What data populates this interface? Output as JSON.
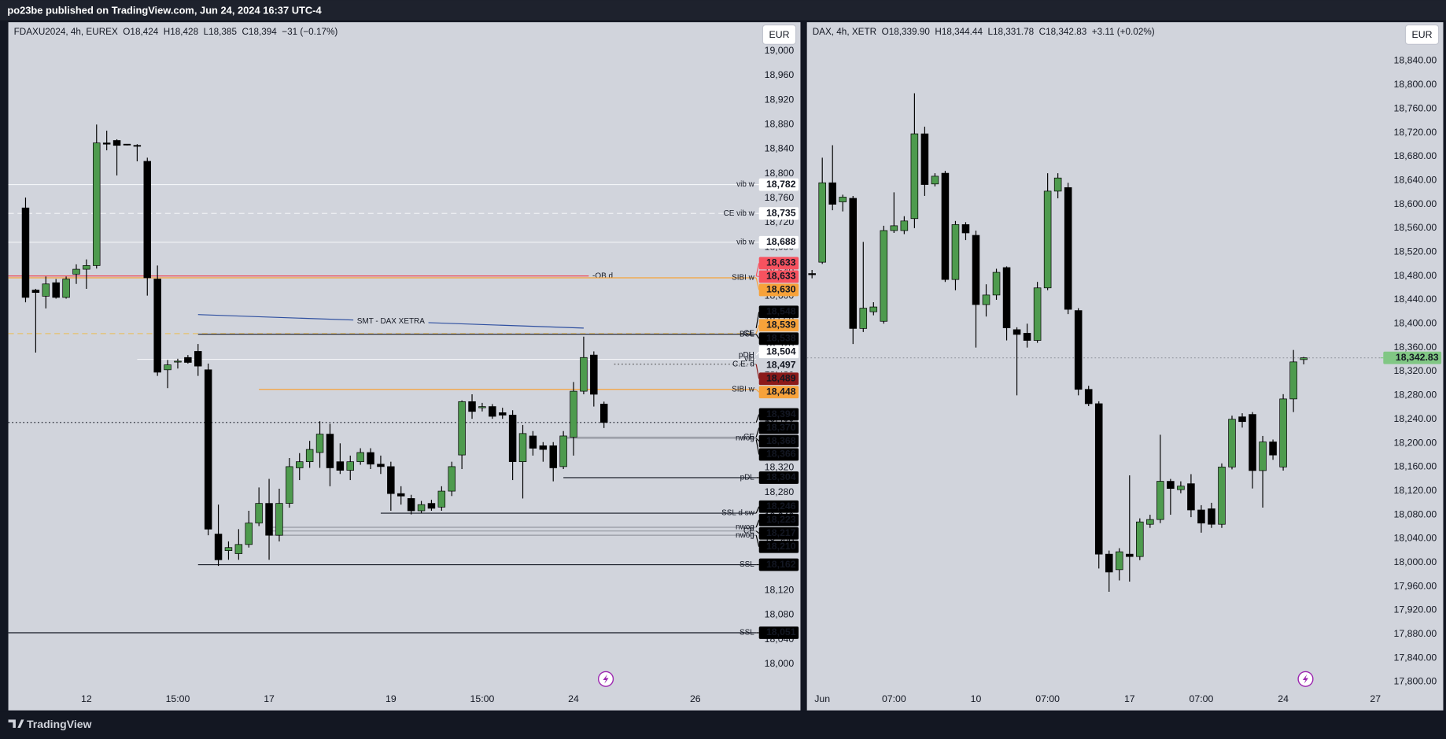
{
  "header": "po23be published on TradingView.com, Jun 24, 2024 16:37 UTC-4",
  "footer": "TradingView",
  "chart_data": [
    {
      "type": "candlestick",
      "title": "FDAXU2024, 4h, EUREX  O18,424  H18,428  L18,385  C18,394  −31 (−0.17%)",
      "currency": "EUR",
      "up_color": "#4e9b4e",
      "down_color": "#000000",
      "border_color": "#000000",
      "grid": false,
      "xlim": [
        -1.7,
        72
      ],
      "xticks": [
        {
          "value": 6,
          "label": "12"
        },
        {
          "value": 15,
          "label": "15:00"
        },
        {
          "value": 24,
          "label": "17"
        },
        {
          "value": 36,
          "label": "19"
        },
        {
          "value": 45,
          "label": "15:00"
        },
        {
          "value": 54,
          "label": "24"
        },
        {
          "value": 66,
          "label": "26"
        }
      ],
      "ylim": [
        17962,
        19047
      ],
      "yticks": [
        {
          "value": 18000,
          "label": "18,000"
        },
        {
          "value": 18040,
          "label": "18,040"
        },
        {
          "value": 18080,
          "label": "18,080"
        },
        {
          "value": 18120,
          "label": "18,120"
        },
        {
          "value": 18160,
          "label": "18,160"
        },
        {
          "value": 18200,
          "label": "18,200"
        },
        {
          "value": 18240,
          "label": "18,240"
        },
        {
          "value": 18280,
          "label": "18,280"
        },
        {
          "value": 18320,
          "label": "18,320"
        },
        {
          "value": 18360,
          "label": "18,360"
        },
        {
          "value": 18400,
          "label": "18,400"
        },
        {
          "value": 18440,
          "label": "18,440"
        },
        {
          "value": 18480,
          "label": "18,480"
        },
        {
          "value": 18520,
          "label": "18,520"
        },
        {
          "value": 18560,
          "label": "18,560"
        },
        {
          "value": 18600,
          "label": "18,600"
        },
        {
          "value": 18640,
          "label": "18,640"
        },
        {
          "value": 18680,
          "label": "18,680"
        },
        {
          "value": 18720,
          "label": "18,720"
        },
        {
          "value": 18760,
          "label": "18,760"
        },
        {
          "value": 18800,
          "label": "18,800"
        },
        {
          "value": 18840,
          "label": "18,840"
        },
        {
          "value": 18880,
          "label": "18,880"
        },
        {
          "value": 18920,
          "label": "18,920"
        },
        {
          "value": 18960,
          "label": "18,960"
        },
        {
          "value": 19000,
          "label": "19,000"
        }
      ],
      "candles": {
        "open": [
          18744,
          18610,
          18600,
          18622,
          18598,
          18636,
          18644,
          18650,
          18850,
          18854,
          18848,
          18846,
          18820,
          18628,
          18480,
          18494,
          18500,
          18510,
          18480,
          18212,
          18185,
          18180,
          18195,
          18230,
          18262,
          18210,
          18262,
          18320,
          18330,
          18345,
          18375,
          18330,
          18316,
          18330,
          18345,
          18326,
          18322,
          18278,
          18270,
          18250,
          18262,
          18256,
          18282,
          18341,
          18428,
          18418,
          18420,
          18410,
          18406,
          18330,
          18372,
          18356,
          18356,
          18322,
          18370,
          18445,
          18504,
          18424
        ],
        "high": [
          18761,
          18612,
          18632,
          18628,
          18632,
          18652,
          18660,
          18880,
          18870,
          18856,
          18848,
          18848,
          18826,
          18650,
          18496,
          18498,
          18504,
          18522,
          18490,
          18260,
          18200,
          18220,
          18250,
          18288,
          18302,
          18286,
          18336,
          18344,
          18364,
          18396,
          18392,
          18360,
          18340,
          18352,
          18352,
          18340,
          18330,
          18290,
          18276,
          18266,
          18268,
          18290,
          18330,
          18430,
          18440,
          18426,
          18424,
          18418,
          18414,
          18390,
          18380,
          18362,
          18362,
          18380,
          18460,
          18534,
          18510,
          18428
        ],
        "low": [
          18590,
          18508,
          18580,
          18596,
          18596,
          18620,
          18612,
          18645,
          18838,
          18797,
          18846,
          18820,
          18601,
          18470,
          18450,
          18482,
          18490,
          18470,
          18210,
          18160,
          18170,
          18170,
          18190,
          18225,
          18170,
          18200,
          18255,
          18300,
          18320,
          18320,
          18290,
          18310,
          18300,
          18325,
          18318,
          18310,
          18250,
          18260,
          18244,
          18246,
          18250,
          18250,
          18274,
          18318,
          18400,
          18412,
          18400,
          18400,
          18300,
          18270,
          18340,
          18330,
          18298,
          18318,
          18340,
          18440,
          18420,
          18385
        ],
        "close": [
          18598,
          18606,
          18620,
          18598,
          18628,
          18644,
          18650,
          18850,
          18848,
          18846,
          18847,
          18845,
          18630,
          18476,
          18488,
          18494,
          18492,
          18486,
          18220,
          18170,
          18190,
          18195,
          18230,
          18262,
          18210,
          18262,
          18322,
          18330,
          18350,
          18375,
          18320,
          18316,
          18330,
          18345,
          18326,
          18322,
          18278,
          18274,
          18250,
          18260,
          18254,
          18282,
          18322,
          18428,
          18412,
          18420,
          18404,
          18406,
          18330,
          18376,
          18352,
          18350,
          18320,
          18372,
          18445,
          18500,
          18440,
          18394
        ]
      },
      "levels": [
        {
          "value": 18782,
          "label": "18,782",
          "note": "vib w",
          "note_color": "#7c9be6",
          "tag_color": "#ffffff",
          "text_color": "#131722",
          "line_color": "#f4f5f8"
        },
        {
          "value": 18735,
          "label": "18,735",
          "note": "CE vib w",
          "note_color": "#7c9be6",
          "tag_color": "#ffffff",
          "text_color": "#131722",
          "line_color": "#f4f5f8",
          "line_style": "dashed"
        },
        {
          "value": 18688,
          "label": "18,688",
          "note": "vib w",
          "note_color": "#7c9be6",
          "tag_color": "#ffffff",
          "text_color": "#131722",
          "line_color": "#f4f5f8"
        },
        {
          "value": 18633,
          "label": "18,633",
          "note": "-OB d",
          "note_color": "#131722",
          "tag_color": "#f7525f",
          "text_color": "#ffffff",
          "line_color": "#f23645",
          "to": 55.5
        },
        {
          "value": 18633,
          "label": "18,633",
          "tag_color": "#f7525f",
          "text_color": "#ffffff"
        },
        {
          "value": 18630,
          "label": "18,630",
          "note": "SIBI w",
          "note_color": "#4caf50",
          "tag_color": "#f7a23a",
          "text_color": "#ffffff",
          "line_color": "#f7a23a"
        },
        {
          "value": 18548,
          "label": "18,548",
          "tag_color": "#000000",
          "text_color": "#ffffff"
        },
        {
          "value": 18539,
          "label": "18,539",
          "note": "CE",
          "note_color": "#787b86",
          "tag_color": "#f7a23a",
          "text_color": "#ffffff",
          "line_color": "#e6c06a",
          "line_style": "dashed"
        },
        {
          "value": 18538,
          "label": "18,538",
          "note": "BSL",
          "note_color": "#131722",
          "tag_color": "#000000",
          "text_color": "#ffffff",
          "line_color": "#131722",
          "from": 17
        },
        {
          "value": 18504,
          "label": "18,504",
          "note": "pDH",
          "note_color": "#131722",
          "tag_color": "#ffffff",
          "text_color": "#131722"
        },
        {
          "value": 18497,
          "label": "18,497",
          "note": "vib",
          "note_color": "#7c9be6",
          "tag_color": "#d1d4dc",
          "text_color": "#131722",
          "line_color": "#f4f5f8",
          "from": 11
        },
        {
          "value": 18489,
          "label": "18,489",
          "note": "C.E. d",
          "note_color": "#ffffff",
          "tag_color": "#8b1a1a",
          "text_color": "#ffffff",
          "line_color": "#555555",
          "line_style": "dotted",
          "from": 58
        },
        {
          "value": 18448,
          "label": "18,448",
          "note": "SIBI w",
          "note_color": "#4caf50",
          "tag_color": "#f7a23a",
          "text_color": "#ffffff",
          "line_color": "#f7a23a",
          "from": 23
        },
        {
          "value": 18394,
          "label": "18,394",
          "tag_color": "#000000",
          "text_color": "#ffffff",
          "line_color": "#131722",
          "line_style": "dotted"
        },
        {
          "value": 18370,
          "label": "18,370",
          "note": "CE",
          "note_color": "#787b86",
          "tag_color": "#000000",
          "text_color": "#ffffff",
          "line_color": "#9598a1",
          "from": 53
        },
        {
          "value": 18368,
          "label": "18,368",
          "note": "nwog",
          "note_color": "#787b86",
          "tag_color": "#000000",
          "text_color": "#ffffff",
          "line_color": "#9598a1",
          "from": 53
        },
        {
          "value": 18366,
          "label": "18,366",
          "tag_color": "#000000",
          "text_color": "#ffffff"
        },
        {
          "value": 18304,
          "label": "18,304",
          "note": "pDL",
          "note_color": "#131722",
          "tag_color": "#000000",
          "text_color": "#ffffff",
          "line_color": "#131722",
          "from": 53
        },
        {
          "value": 18246,
          "label": "18,246",
          "note": "SSL d sw",
          "note_color": "#131722",
          "tag_color": "#000000",
          "text_color": "#ffffff",
          "line_color": "#131722",
          "from": 35
        },
        {
          "value": 18223,
          "label": "18,223",
          "note": "nwog",
          "note_color": "#787b86",
          "tag_color": "#000000",
          "text_color": "#ffffff",
          "line_color": "#9598a1",
          "from": 24
        },
        {
          "value": 18217,
          "label": "18,217",
          "note": "CE",
          "note_color": "#787b86",
          "tag_color": "#000000",
          "text_color": "#ffffff",
          "line_color": "#9598a1",
          "from": 24
        },
        {
          "value": 18210,
          "label": "18,210",
          "note": "nwog",
          "note_color": "#787b86",
          "tag_color": "#000000",
          "text_color": "#ffffff",
          "line_color": "#9598a1",
          "from": 24
        },
        {
          "value": 18162,
          "label": "18,162",
          "note": "SSL",
          "note_color": "#131722",
          "tag_color": "#000000",
          "text_color": "#ffffff",
          "line_color": "#131722",
          "from": 17
        },
        {
          "value": 18051,
          "label": "18,051",
          "note": "SSL",
          "note_color": "#131722",
          "tag_color": "#000000",
          "text_color": "#ffffff",
          "line_color": "#131722"
        }
      ],
      "trendlines": [
        {
          "label": "SMT - DAX XETRA",
          "x": [
            17,
            55
          ],
          "y": [
            18570,
            18548
          ],
          "color": "#2e4fa0"
        }
      ]
    },
    {
      "type": "candlestick",
      "title": "DAX, 4h, XETR  O18,339.90  H18,344.44  L18,331.78  C18,342.83  +3.11 (+0.02%)",
      "currency": "EUR",
      "up_color": "#4e9b4e",
      "down_color": "#000000",
      "border_color": "#000000",
      "grid": false,
      "xlim": [
        -0.5,
        55.5
      ],
      "xticks": [
        {
          "value": 1,
          "label": "Jun"
        },
        {
          "value": 8,
          "label": "07:00"
        },
        {
          "value": 16,
          "label": "10"
        },
        {
          "value": 23,
          "label": "07:00"
        },
        {
          "value": 31,
          "label": "17"
        },
        {
          "value": 38,
          "label": "07:00"
        },
        {
          "value": 46,
          "label": "24"
        },
        {
          "value": 55,
          "label": "27"
        }
      ],
      "ylim": [
        17791,
        18905
      ],
      "yticks": [
        {
          "value": 17800,
          "label": "17,800.00"
        },
        {
          "value": 17840,
          "label": "17,840.00"
        },
        {
          "value": 17880,
          "label": "17,880.00"
        },
        {
          "value": 17920,
          "label": "17,920.00"
        },
        {
          "value": 17960,
          "label": "17,960.00"
        },
        {
          "value": 18000,
          "label": "18,000.00"
        },
        {
          "value": 18040,
          "label": "18,040.00"
        },
        {
          "value": 18080,
          "label": "18,080.00"
        },
        {
          "value": 18120,
          "label": "18,120.00"
        },
        {
          "value": 18160,
          "label": "18,160.00"
        },
        {
          "value": 18200,
          "label": "18,200.00"
        },
        {
          "value": 18240,
          "label": "18,240.00"
        },
        {
          "value": 18280,
          "label": "18,280.00"
        },
        {
          "value": 18320,
          "label": "18,320.00"
        },
        {
          "value": 18360,
          "label": "18,360.00"
        },
        {
          "value": 18400,
          "label": "18,400.00"
        },
        {
          "value": 18440,
          "label": "18,440.00"
        },
        {
          "value": 18480,
          "label": "18,480.00"
        },
        {
          "value": 18520,
          "label": "18,520.00"
        },
        {
          "value": 18560,
          "label": "18,560.00"
        },
        {
          "value": 18600,
          "label": "18,600.00"
        },
        {
          "value": 18640,
          "label": "18,640.00"
        },
        {
          "value": 18680,
          "label": "18,680.00"
        },
        {
          "value": 18720,
          "label": "18,720.00"
        },
        {
          "value": 18760,
          "label": "18,760.00"
        },
        {
          "value": 18800,
          "label": "18,800.00"
        },
        {
          "value": 18840,
          "label": "18,840.00"
        }
      ],
      "candles": {
        "open": [
          18484,
          18503,
          18636,
          18604,
          18610,
          18392,
          18420,
          18404,
          18556,
          18556,
          18576,
          18718,
          18634,
          18652,
          18474,
          18566,
          18548,
          18432,
          18448,
          18494,
          18390,
          18384,
          18372,
          18460,
          18622,
          18628,
          18422,
          18290,
          18266,
          18014,
          17988,
          18014,
          18010,
          18064,
          18072,
          18136,
          18122,
          18132,
          18088,
          18090,
          18064,
          18160,
          18244,
          18248,
          18154,
          18202,
          18160,
          18274,
          18339.9
        ],
        "high": [
          18490,
          18678,
          18699,
          18616,
          18614,
          18537,
          18436,
          18564,
          18620,
          18580,
          18786,
          18730,
          18652,
          18656,
          18572,
          18570,
          18556,
          18466,
          18492,
          18496,
          18394,
          18400,
          18470,
          18652,
          18652,
          18636,
          18426,
          18296,
          18270,
          18020,
          18024,
          18146,
          18074,
          18080,
          18214,
          18140,
          18136,
          18148,
          18096,
          18100,
          18166,
          18246,
          18250,
          18252,
          18212,
          18206,
          18282,
          18356,
          18344.44
        ],
        "low": [
          18476,
          18500,
          18590,
          18588,
          18366,
          18386,
          18414,
          18400,
          18552,
          18550,
          18560,
          18614,
          18630,
          18470,
          18456,
          18540,
          18360,
          18412,
          18440,
          18372,
          18280,
          18360,
          18368,
          18456,
          18610,
          18416,
          18280,
          18262,
          17990,
          17951,
          17970,
          17968,
          18004,
          18058,
          18066,
          18080,
          18116,
          18076,
          18050,
          18058,
          18058,
          18156,
          18226,
          18124,
          18092,
          18172,
          18154,
          18252,
          18331.78
        ],
        "close": [
          18482,
          18636,
          18600,
          18612,
          18392,
          18426,
          18428,
          18556,
          18564,
          18572,
          18718,
          18633,
          18647,
          18474,
          18566,
          18552,
          18432,
          18448,
          18486,
          18393,
          18382,
          18372,
          18460,
          18622,
          18644,
          18424,
          18290,
          18266,
          18014,
          17984,
          18018,
          18010,
          18068,
          18072,
          18136,
          18124,
          18128,
          18088,
          18066,
          18064,
          18160,
          18240,
          18236,
          18154,
          18202,
          18180,
          18274,
          18336,
          18342.83
        ]
      },
      "levels": [
        {
          "value": 18342.83,
          "label": "18,342.83",
          "tag_color": "#81c784",
          "text_color": "#ffffff",
          "line_color": "#9598a1",
          "line_style": "dotted"
        }
      ]
    }
  ]
}
